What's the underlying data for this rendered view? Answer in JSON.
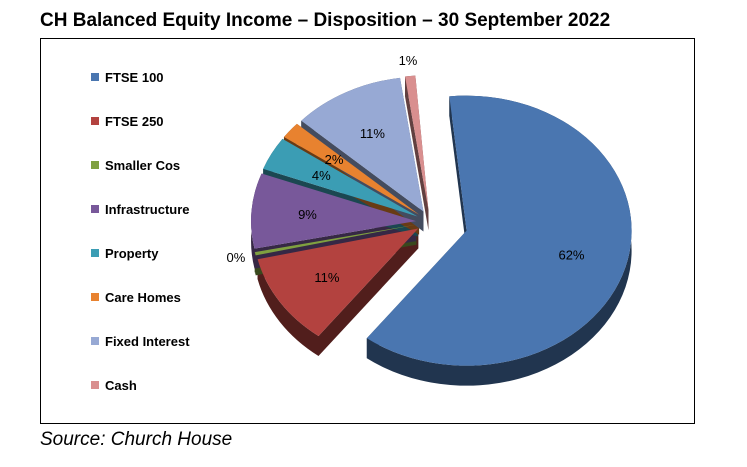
{
  "title": "CH Balanced Equity Income – Disposition – 30 September 2022",
  "source": "Source: Church House",
  "chart_data": {
    "type": "pie",
    "title": "",
    "legend_position": "left",
    "exploded": true,
    "three_d": true,
    "slices": [
      {
        "label": "FTSE 100",
        "value": 62,
        "value_label": "62%",
        "color": "#4a76b0"
      },
      {
        "label": "FTSE 250",
        "value": 11,
        "value_label": "11%",
        "color": "#b3423f"
      },
      {
        "label": "Smaller Cos",
        "value": 0,
        "value_label": "0%",
        "color": "#7fa040"
      },
      {
        "label": "Infrastructure",
        "value": 9,
        "value_label": "9%",
        "color": "#78589a"
      },
      {
        "label": "Property",
        "value": 4,
        "value_label": "4%",
        "color": "#3b9db4"
      },
      {
        "label": "Care Homes",
        "value": 2,
        "value_label": "2%",
        "color": "#e8822f"
      },
      {
        "label": "Fixed Interest",
        "value": 11,
        "value_label": "11%",
        "color": "#97a9d4"
      },
      {
        "label": "Cash",
        "value": 1,
        "value_label": "1%",
        "color": "#d98f8f"
      }
    ]
  }
}
